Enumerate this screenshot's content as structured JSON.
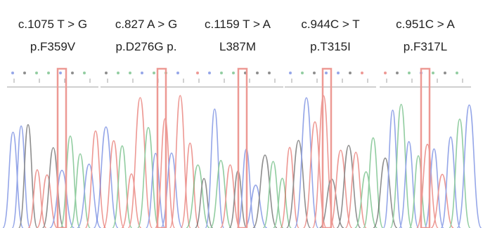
{
  "panels": [
    {
      "cdna": "c.1075 T > G",
      "protein": "p.F359V"
    },
    {
      "cdna": "c.827 A > G",
      "protein": "p.D276G p."
    },
    {
      "cdna": "c.1159 T > A",
      "protein": "L387M"
    },
    {
      "cdna": "c.944C > T",
      "protein": "p.T315I"
    },
    {
      "cdna": "c.951C > A",
      "protein": "p.F317L"
    }
  ]
}
